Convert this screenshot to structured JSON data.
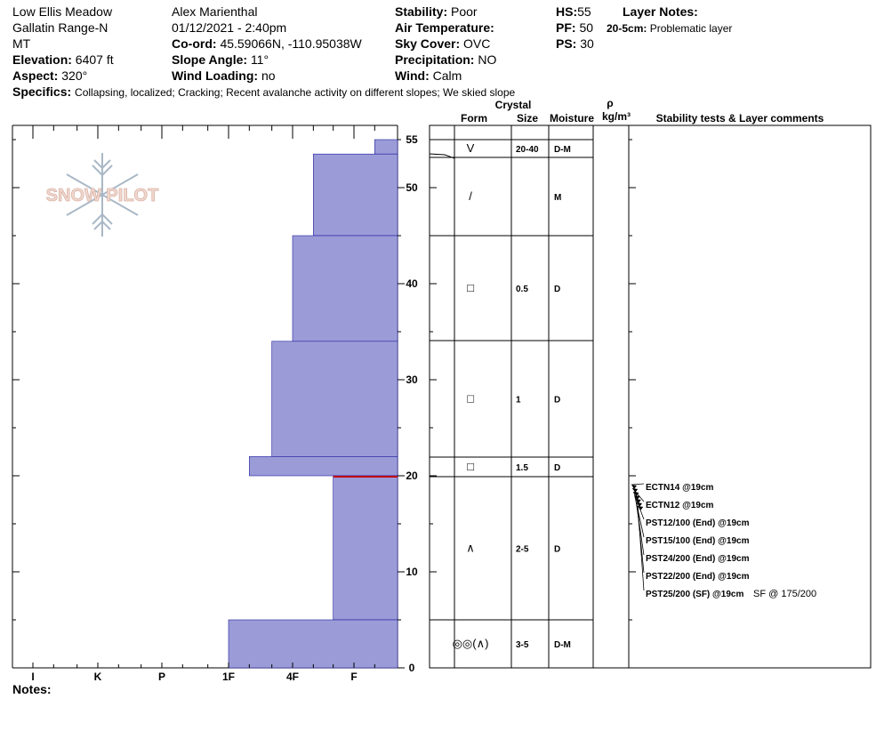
{
  "header": {
    "location": "Low Ellis Meadow",
    "range": "Gallatin Range-N",
    "state": "MT",
    "elevation_label": "Elevation:",
    "elevation": "6407 ft",
    "aspect_label": "Aspect:",
    "aspect": "320°",
    "observer": "Alex Marienthal",
    "datetime": "01/12/2021 - 2:40pm",
    "coord_label": "Co-ord:",
    "coord": "45.59066N, -110.95038W",
    "slope_label": "Slope Angle:",
    "slope": "11°",
    "wind_loading_label": "Wind Loading:",
    "wind_loading": "no",
    "stability_label": "Stability:",
    "stability": "Poor",
    "air_temp_label": "Air Temperature:",
    "air_temp": "",
    "sky_label": "Sky Cover:",
    "sky": "OVC",
    "precip_label": "Precipitation:",
    "precip": "NO",
    "wind_label": "Wind:",
    "wind": "Calm",
    "hs_label": "HS:",
    "hs": "55",
    "pf_label": "PF:",
    "pf": "50",
    "ps_label": "PS:",
    "ps": "30",
    "layer_notes_label": "Layer Notes:",
    "layer_notes_range": "20-5cm:",
    "layer_notes_text": "Problematic layer",
    "specifics_label": "Specifics:",
    "specifics": "Collapsing, localized;  Cracking;  Recent avalanche activity on different slopes;  We skied slope",
    "notes_label": "Notes:"
  },
  "logo": {
    "text": "SNOW PILOT"
  },
  "columns": {
    "crystal": "Crystal",
    "form": "Form",
    "size": "Size",
    "moisture": "Moisture",
    "rho": "ρ",
    "density": "kg/m³",
    "comments": "Stability tests & Layer comments"
  },
  "chart_data": {
    "type": "bar",
    "orientation": "horizontal",
    "title": "",
    "hardness_scale": [
      "I",
      "K",
      "P",
      "1F",
      "4F",
      "F"
    ],
    "height_axis": {
      "ylim": [
        0,
        56
      ],
      "ticks": [
        0,
        10,
        20,
        30,
        40,
        50,
        55
      ]
    },
    "color": "#9b9bd7",
    "weak_layer_height_cm": 20,
    "weak_layer_color": "#c00000",
    "layers": [
      {
        "top": 55,
        "bottom": 53.5,
        "hardness": "F-",
        "form": "V",
        "size": "20-40",
        "moisture": "D-M"
      },
      {
        "top": 53.5,
        "bottom": 45,
        "hardness": "4F-",
        "form": "/",
        "size": "",
        "moisture": "M"
      },
      {
        "top": 45,
        "bottom": 34,
        "hardness": "4F",
        "form": "□",
        "size": "0.5",
        "moisture": "D"
      },
      {
        "top": 34,
        "bottom": 22,
        "hardness": "4F+",
        "form": "□",
        "size": "1",
        "moisture": "D"
      },
      {
        "top": 22,
        "bottom": 20,
        "hardness": "1F-",
        "form": "□",
        "size": "1.5",
        "moisture": "D"
      },
      {
        "top": 20,
        "bottom": 5,
        "hardness": "F+",
        "form": "∧",
        "size": "2-5",
        "moisture": "D"
      },
      {
        "top": 5,
        "bottom": 0,
        "hardness": "1F",
        "form": "◎◎(∧)",
        "size": "3-5",
        "moisture": "D-M"
      }
    ],
    "tests": [
      {
        "label": "ECTN14 @19cm",
        "note": ""
      },
      {
        "label": "ECTN12 @19cm",
        "note": ""
      },
      {
        "label": "PST12/100 (End) @19cm",
        "note": ""
      },
      {
        "label": "PST15/100 (End) @19cm",
        "note": ""
      },
      {
        "label": "PST24/200 (End) @19cm",
        "note": ""
      },
      {
        "label": "PST22/200 (End) @19cm",
        "note": ""
      },
      {
        "label": "PST25/200 (SF) @19cm",
        "note": "SF @ 175/200"
      }
    ]
  }
}
